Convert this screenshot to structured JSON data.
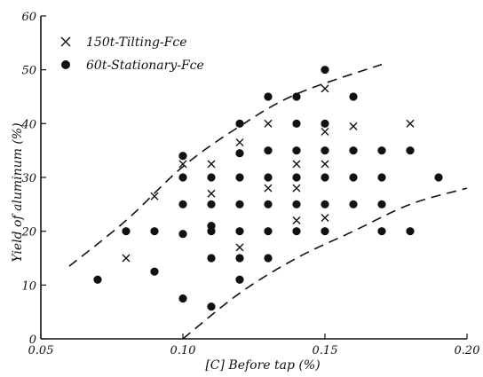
{
  "chart_data": {
    "type": "scatter",
    "xlabel": "[C] Before tap (%)",
    "ylabel": "Yield of aluminum (%)",
    "xlim": [
      0.05,
      0.2
    ],
    "ylim": [
      0,
      60
    ],
    "xticks": [
      "0.05",
      "0.10",
      "0.15",
      "0.20"
    ],
    "yticks": [
      "0",
      "10",
      "20",
      "30",
      "40",
      "50",
      "60"
    ],
    "legend_position": "top-left",
    "series": [
      {
        "name": "150t-Tilting-Fce",
        "marker": "cross",
        "points": [
          [
            0.08,
            15
          ],
          [
            0.09,
            26.5
          ],
          [
            0.1,
            32.5
          ],
          [
            0.11,
            32.5
          ],
          [
            0.11,
            27
          ],
          [
            0.12,
            36.5
          ],
          [
            0.12,
            17
          ],
          [
            0.13,
            40
          ],
          [
            0.13,
            28
          ],
          [
            0.14,
            32.5
          ],
          [
            0.14,
            28
          ],
          [
            0.14,
            22
          ],
          [
            0.15,
            46.5
          ],
          [
            0.15,
            38.5
          ],
          [
            0.15,
            32.5
          ],
          [
            0.15,
            22.5
          ],
          [
            0.16,
            39.5
          ],
          [
            0.18,
            40
          ]
        ]
      },
      {
        "name": "60t-Stationary-Fce",
        "marker": "dot",
        "points": [
          [
            0.07,
            11
          ],
          [
            0.08,
            20
          ],
          [
            0.09,
            20
          ],
          [
            0.09,
            12.5
          ],
          [
            0.1,
            34
          ],
          [
            0.1,
            30
          ],
          [
            0.1,
            25
          ],
          [
            0.1,
            19.5
          ],
          [
            0.1,
            7.5
          ],
          [
            0.11,
            30
          ],
          [
            0.11,
            25
          ],
          [
            0.11,
            21
          ],
          [
            0.11,
            20
          ],
          [
            0.11,
            15
          ],
          [
            0.11,
            6
          ],
          [
            0.12,
            40
          ],
          [
            0.12,
            34.5
          ],
          [
            0.12,
            30
          ],
          [
            0.12,
            25
          ],
          [
            0.12,
            20
          ],
          [
            0.12,
            15
          ],
          [
            0.12,
            11
          ],
          [
            0.13,
            45
          ],
          [
            0.13,
            35
          ],
          [
            0.13,
            30
          ],
          [
            0.13,
            25
          ],
          [
            0.13,
            20
          ],
          [
            0.13,
            15
          ],
          [
            0.14,
            45
          ],
          [
            0.14,
            40
          ],
          [
            0.14,
            35
          ],
          [
            0.14,
            30
          ],
          [
            0.14,
            25
          ],
          [
            0.14,
            20
          ],
          [
            0.15,
            50
          ],
          [
            0.15,
            40
          ],
          [
            0.15,
            35
          ],
          [
            0.15,
            30
          ],
          [
            0.15,
            25
          ],
          [
            0.15,
            20
          ],
          [
            0.16,
            45
          ],
          [
            0.16,
            35
          ],
          [
            0.16,
            30
          ],
          [
            0.16,
            25
          ],
          [
            0.17,
            35
          ],
          [
            0.17,
            30
          ],
          [
            0.17,
            25
          ],
          [
            0.17,
            20
          ],
          [
            0.18,
            35
          ],
          [
            0.18,
            20
          ],
          [
            0.19,
            30
          ]
        ]
      }
    ],
    "boundaries": [
      {
        "points": [
          [
            0.06,
            13.5
          ],
          [
            0.08,
            22
          ],
          [
            0.1,
            32
          ],
          [
            0.12,
            39.5
          ],
          [
            0.14,
            45.5
          ],
          [
            0.17,
            51
          ]
        ]
      },
      {
        "points": [
          [
            0.1,
            0
          ],
          [
            0.12,
            8.5
          ],
          [
            0.14,
            15
          ],
          [
            0.16,
            20
          ],
          [
            0.18,
            25
          ],
          [
            0.2,
            28
          ]
        ]
      }
    ],
    "grid": false
  },
  "legend": {
    "tilting": "150t-Tilting-Fce",
    "stationary": "60t-Stationary-Fce"
  },
  "colors": {
    "ink": "#111111",
    "background": "#ffffff"
  }
}
